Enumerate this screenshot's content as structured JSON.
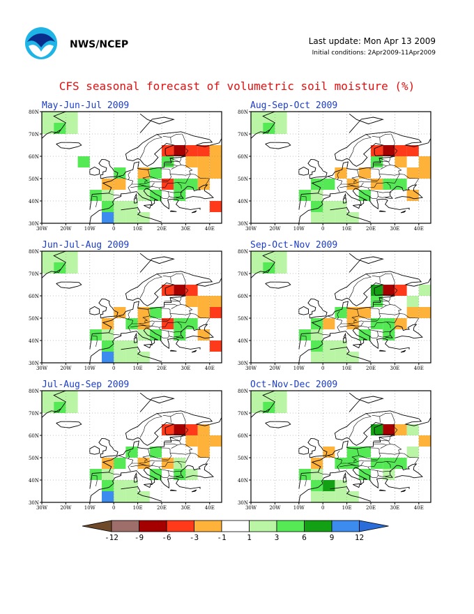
{
  "header": {
    "org": "NWS/NCEP",
    "last_update": "Last update: Mon Apr 13 2009",
    "initial_conditions": "Initial conditions: 2Apr2009-11Apr2009"
  },
  "title": "CFS seasonal forecast of volumetric soil moisture (%)",
  "axes": {
    "lat_labels": [
      "30N",
      "40N",
      "50N",
      "60N",
      "70N",
      "80N"
    ],
    "lon_labels": [
      "30W",
      "20W",
      "10W",
      "0",
      "10E",
      "20E",
      "30E",
      "40E"
    ],
    "lat_values": [
      30,
      40,
      50,
      60,
      70,
      80
    ],
    "lon_values": [
      -30,
      -20,
      -10,
      0,
      10,
      20,
      30,
      40
    ],
    "lon_range": [
      -30,
      45
    ],
    "lat_range": [
      30,
      80
    ]
  },
  "panels": [
    {
      "label": "May-Jun-Jul 2009"
    },
    {
      "label": "Aug-Sep-Oct 2009"
    },
    {
      "label": "Jun-Jul-Aug 2009"
    },
    {
      "label": "Sep-Oct-Nov 2009"
    },
    {
      "label": "Jul-Aug-Sep 2009"
    },
    {
      "label": "Oct-Nov-Dec 2009"
    }
  ],
  "colors": {
    "grey": "#9e6f6a",
    "dkred": "#a50000",
    "red": "#ff3a1a",
    "orange": "#ffb23a",
    "ltgreen": "#b9f5a5",
    "green": "#55ea55",
    "dkgreen": "#14a014",
    "blue": "#3c8cf0"
  },
  "legend": {
    "labels": [
      "-12",
      "-9",
      "-6",
      "-3",
      "-1",
      "1",
      "3",
      "6",
      "9",
      "12"
    ],
    "bins": [
      {
        "color": "#9e6f6a"
      },
      {
        "color": "#a50000"
      },
      {
        "color": "#ff3a1a"
      },
      {
        "color": "#ffb23a"
      },
      {
        "color": "#ffffff"
      },
      {
        "color": "#b9f5a5"
      },
      {
        "color": "#55ea55"
      },
      {
        "color": "#14a014"
      },
      {
        "color": "#3c8cf0"
      }
    ],
    "low_end_color": "#6e4a2a",
    "high_end_color": "#2a6cd8"
  }
}
